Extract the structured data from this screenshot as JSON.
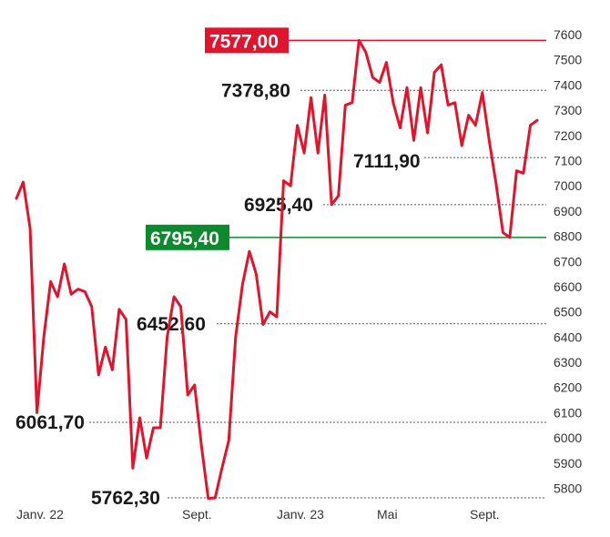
{
  "chart_data": {
    "type": "line",
    "title": "",
    "xlabel": "",
    "ylabel": "",
    "ylim": [
      5750,
      7620
    ],
    "yticks": [
      5800,
      5900,
      6000,
      6100,
      6200,
      6300,
      6400,
      6500,
      6600,
      6700,
      6800,
      6900,
      7000,
      7100,
      7200,
      7300,
      7400,
      7500,
      7600
    ],
    "xtick_labels": [
      {
        "t": 0.0,
        "label": "Janv. 22"
      },
      {
        "t": 0.309,
        "label": "Sept."
      },
      {
        "t": 0.526,
        "label": "Janv. 23"
      },
      {
        "t": 0.689,
        "label": "Mai"
      },
      {
        "t": 0.905,
        "label": "Sept."
      }
    ],
    "series": [
      {
        "color": "#e0142c",
        "values": [
          6950,
          7015,
          6830,
          6100,
          6400,
          6620,
          6560,
          6690,
          6570,
          6590,
          6580,
          6520,
          6250,
          6360,
          6270,
          6510,
          6470,
          5880,
          6080,
          5920,
          6040,
          6040,
          6400,
          6560,
          6520,
          6170,
          6210,
          5970,
          5760,
          5762,
          5880,
          5990,
          6400,
          6610,
          6740,
          6650,
          6450,
          6500,
          6480,
          7020,
          7000,
          7240,
          7130,
          7350,
          7130,
          7360,
          6925,
          6960,
          7320,
          7330,
          7577,
          7530,
          7430,
          7410,
          7490,
          7330,
          7230,
          7390,
          7180,
          7390,
          7210,
          7450,
          7480,
          7320,
          7330,
          7160,
          7280,
          7240,
          7370,
          7180,
          7010,
          6815,
          6795,
          7060,
          7050,
          7240,
          7260
        ]
      }
    ],
    "reference_lines": [
      {
        "value": 7577.0,
        "label": "7577,00",
        "color": "#e0142c",
        "boxed": true
      },
      {
        "value": 6795.4,
        "label": "6795,40",
        "color": "#0e8a2e",
        "boxed": true
      }
    ],
    "annotations": [
      {
        "value": 7378.8,
        "label": "7378,80",
        "t": 0.713
      },
      {
        "value": 7111.9,
        "label": "7111,90",
        "t": 0.884
      },
      {
        "value": 6925.4,
        "label": "6925,40",
        "t": 0.605
      },
      {
        "value": 6452.6,
        "label": "6452,60",
        "t": 0.425
      },
      {
        "value": 6061.7,
        "label": "6061,70",
        "t": 0.153
      },
      {
        "value": 5762.3,
        "label": "5762,30",
        "t": 0.385
      }
    ]
  }
}
